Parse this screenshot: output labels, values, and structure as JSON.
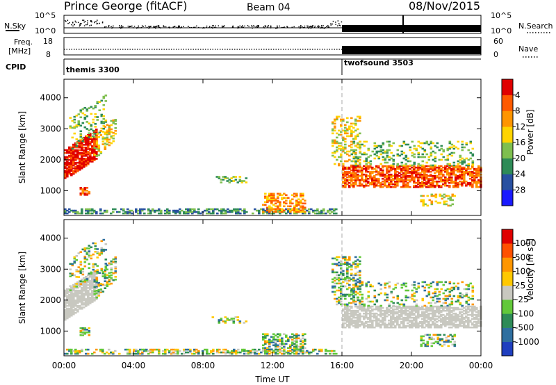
{
  "header": {
    "station": "Prince George (fitACF)",
    "beam": "Beam 04",
    "date": "08/Nov/2015"
  },
  "panels": {
    "nsky": {
      "left_label": "N.Sky",
      "left_ticks": [
        "10^5",
        "10^0"
      ],
      "right_label": "N.Search",
      "right_ticks": [
        "10^5",
        "10^0"
      ]
    },
    "freq": {
      "left_label_1": "Freq.",
      "left_label_2": "[MHz]",
      "left_ticks": [
        "18",
        "8"
      ],
      "right_label": "Nave",
      "right_ticks": [
        "60",
        "0"
      ]
    },
    "cpid": {
      "label": "CPID",
      "modes": [
        {
          "name": "themis 3300",
          "start_hour": 0
        },
        {
          "name": "twofsound 3503",
          "start_hour": 16
        }
      ]
    }
  },
  "chart_data": [
    {
      "type": "heatmap",
      "title": "",
      "ylabel": "Slant Range [km]",
      "xlabel": "",
      "ylim": [
        200,
        4600
      ],
      "xlim": [
        0,
        24
      ],
      "y_ticks": [
        "1000",
        "2000",
        "3000",
        "4000"
      ],
      "x_ticks": [
        "00:00",
        "04:00",
        "08:00",
        "12:00",
        "16:00",
        "20:00",
        "00:00"
      ],
      "colorbar": {
        "label": "Power [dB]",
        "ticks": [
          "4",
          "8",
          "12",
          "16",
          "20",
          "24",
          "28"
        ],
        "colors": [
          "#1a1aff",
          "#2850a0",
          "#2e8b57",
          "#7fbf4f",
          "#ffd400",
          "#ff9500",
          "#ff5a00",
          "#e00000"
        ]
      }
    },
    {
      "type": "heatmap",
      "title": "",
      "ylabel": "Slant Range [km]",
      "xlabel": "Time UT",
      "ylim": [
        200,
        4600
      ],
      "xlim": [
        0,
        24
      ],
      "y_ticks": [
        "1000",
        "2000",
        "3000",
        "4000"
      ],
      "x_ticks": [
        "00:00",
        "04:00",
        "08:00",
        "12:00",
        "16:00",
        "20:00",
        "00:00"
      ],
      "colorbar": {
        "label": "Velocity [m s",
        "label_sup": "-1",
        "label_end": "]",
        "ticks": [
          "1000",
          "500",
          "100",
          "25",
          "-25",
          "-100",
          "-500",
          "-1000"
        ],
        "colors": [
          "#1f3fbf",
          "#2f6f9f",
          "#2e8b57",
          "#62c83a",
          "#c8c8c0",
          "#ffc800",
          "#ff9600",
          "#ff5000",
          "#e00000"
        ]
      }
    }
  ]
}
